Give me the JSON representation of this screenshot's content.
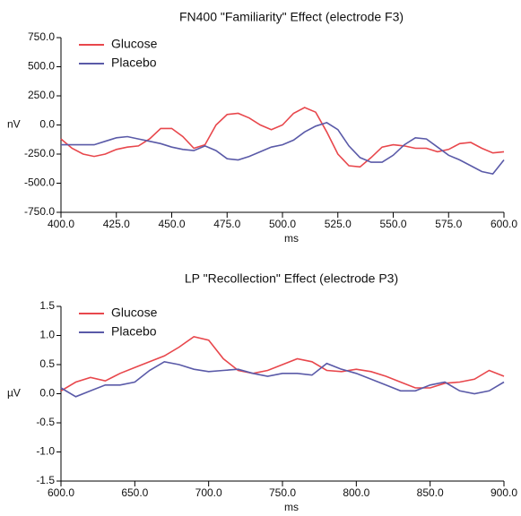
{
  "chart_data": [
    {
      "type": "line",
      "title": "FN400 \"Familiarity\" Effect (electrode F3)",
      "x_label": "ms",
      "y_label": "nV",
      "legend": "upper left",
      "x": [
        400,
        405,
        410,
        415,
        420,
        425,
        430,
        435,
        440,
        445,
        450,
        455,
        460,
        465,
        470,
        475,
        480,
        485,
        490,
        495,
        500,
        505,
        510,
        515,
        520,
        525,
        530,
        535,
        540,
        545,
        550,
        555,
        560,
        565,
        570,
        575,
        580,
        585,
        590,
        595,
        600
      ],
      "series": [
        {
          "name": "Glucose",
          "color": "#e8474c",
          "values": [
            -120,
            -200,
            -250,
            -270,
            -250,
            -210,
            -190,
            -180,
            -120,
            -30,
            -30,
            -100,
            -200,
            -170,
            0,
            90,
            100,
            60,
            0,
            -40,
            0,
            100,
            150,
            110,
            -60,
            -250,
            -350,
            -360,
            -280,
            -190,
            -170,
            -180,
            -200,
            -200,
            -230,
            -210,
            -160,
            -150,
            -200,
            -240,
            -230
          ]
        },
        {
          "name": "Placebo",
          "color": "#5a5aa8",
          "values": [
            -170,
            -170,
            -170,
            -170,
            -140,
            -110,
            -100,
            -120,
            -140,
            -160,
            -190,
            -210,
            -220,
            -180,
            -220,
            -290,
            -300,
            -270,
            -230,
            -190,
            -170,
            -130,
            -60,
            -10,
            20,
            -40,
            -180,
            -280,
            -320,
            -320,
            -260,
            -170,
            -110,
            -120,
            -190,
            -260,
            -300,
            -350,
            -400,
            -420,
            -300
          ]
        }
      ],
      "xlim": [
        400,
        600
      ],
      "xticks": [
        {
          "value": 400,
          "label": "400.0"
        },
        {
          "value": 425,
          "label": "425.0"
        },
        {
          "value": 450,
          "label": "450.0"
        },
        {
          "value": 475,
          "label": "475.0"
        },
        {
          "value": 500,
          "label": "500.0"
        },
        {
          "value": 525,
          "label": "525.0"
        },
        {
          "value": 550,
          "label": "550.0"
        },
        {
          "value": 575,
          "label": "575.0"
        },
        {
          "value": 600,
          "label": "600.0"
        }
      ],
      "ylim": [
        -750,
        750
      ],
      "yticks": [
        {
          "value": 750,
          "label": "750.0"
        },
        {
          "value": 500,
          "label": "500.0"
        },
        {
          "value": 250,
          "label": "250.0"
        },
        {
          "value": 0,
          "label": "0.0"
        },
        {
          "value": -250,
          "label": "-250.0"
        },
        {
          "value": -500,
          "label": "-500.0"
        },
        {
          "value": -750,
          "label": "-750.0"
        }
      ]
    },
    {
      "type": "line",
      "title": "LP \"Recollection\" Effect (electrode P3)",
      "x_label": "ms",
      "y_label": "µV",
      "legend": "upper left",
      "x": [
        600,
        610,
        620,
        630,
        640,
        650,
        660,
        670,
        680,
        690,
        700,
        710,
        720,
        730,
        740,
        750,
        760,
        770,
        780,
        790,
        800,
        810,
        820,
        830,
        840,
        850,
        860,
        870,
        880,
        890,
        900
      ],
      "series": [
        {
          "name": "Glucose",
          "color": "#e8474c",
          "values": [
            0.05,
            0.2,
            0.28,
            0.22,
            0.35,
            0.45,
            0.55,
            0.65,
            0.8,
            0.98,
            0.92,
            0.6,
            0.4,
            0.35,
            0.4,
            0.5,
            0.6,
            0.55,
            0.4,
            0.38,
            0.42,
            0.38,
            0.3,
            0.2,
            0.1,
            0.1,
            0.18,
            0.2,
            0.25,
            0.4,
            0.3
          ]
        },
        {
          "name": "Placebo",
          "color": "#5a5aa8",
          "values": [
            0.1,
            -0.05,
            0.05,
            0.15,
            0.15,
            0.2,
            0.4,
            0.55,
            0.5,
            0.42,
            0.38,
            0.4,
            0.42,
            0.35,
            0.3,
            0.35,
            0.35,
            0.32,
            0.52,
            0.42,
            0.35,
            0.25,
            0.15,
            0.05,
            0.05,
            0.15,
            0.2,
            0.05,
            0.0,
            0.05,
            0.2
          ]
        }
      ],
      "xlim": [
        600,
        900
      ],
      "xticks": [
        {
          "value": 600,
          "label": "600.0"
        },
        {
          "value": 650,
          "label": "650.0"
        },
        {
          "value": 700,
          "label": "700.0"
        },
        {
          "value": 750,
          "label": "750.0"
        },
        {
          "value": 800,
          "label": "800.0"
        },
        {
          "value": 850,
          "label": "850.0"
        },
        {
          "value": 900,
          "label": "900.0"
        }
      ],
      "ylim": [
        -1.5,
        1.5
      ],
      "yticks": [
        1.5,
        {
          "value": 1.0,
          "label": "1.0"
        },
        0.5,
        {
          "value": 0.0,
          "label": "0.0"
        },
        -0.5,
        {
          "value": -1.0,
          "label": "-1.0"
        },
        -1.5
      ]
    }
  ]
}
